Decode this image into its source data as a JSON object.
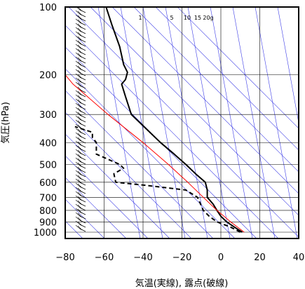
{
  "chart_data": {
    "type": "line",
    "title": "",
    "xlabel": "気温(実線), 露点(破線)",
    "ylabel": "気圧(hPa)",
    "xlim": [
      -80,
      40
    ],
    "ylim": [
      1050,
      100
    ],
    "y_scale": "log",
    "grid": true,
    "x_ticks": [
      -80,
      -60,
      -40,
      -20,
      0,
      20,
      40
    ],
    "x_tick_labels": [
      "−80",
      "−60",
      "−40",
      "−20",
      "0",
      "20",
      "40"
    ],
    "y_ticks": [
      1000,
      900,
      800,
      700,
      600,
      500,
      400,
      300,
      200,
      100
    ],
    "y_tick_labels": [
      "1000",
      "900",
      "800",
      "700",
      "600",
      "500",
      "400",
      "300",
      "200",
      "100"
    ],
    "mixing_ratio_labels": [
      "1",
      "5",
      "10",
      "15",
      "20g"
    ],
    "series": [
      {
        "role": "temperature",
        "style": "solid",
        "color": "#000000",
        "points": [
          {
            "p": 1000,
            "t": 11
          },
          {
            "p": 950,
            "t": 7
          },
          {
            "p": 900,
            "t": 3
          },
          {
            "p": 850,
            "t": 0
          },
          {
            "p": 800,
            "t": -2
          },
          {
            "p": 750,
            "t": -4
          },
          {
            "p": 700,
            "t": -7
          },
          {
            "p": 650,
            "t": -7
          },
          {
            "p": 600,
            "t": -8
          },
          {
            "p": 550,
            "t": -13
          },
          {
            "p": 500,
            "t": -18
          },
          {
            "p": 450,
            "t": -24
          },
          {
            "p": 400,
            "t": -31
          },
          {
            "p": 350,
            "t": -38
          },
          {
            "p": 300,
            "t": -46
          },
          {
            "p": 250,
            "t": -49
          },
          {
            "p": 220,
            "t": -51
          },
          {
            "p": 210,
            "t": -49
          },
          {
            "p": 195,
            "t": -48
          },
          {
            "p": 180,
            "t": -50
          },
          {
            "p": 150,
            "t": -52
          },
          {
            "p": 120,
            "t": -56
          },
          {
            "p": 100,
            "t": -59
          }
        ]
      },
      {
        "role": "dewpoint",
        "style": "dashed",
        "color": "#000000",
        "points": [
          {
            "p": 1000,
            "t": 10
          },
          {
            "p": 950,
            "t": 5
          },
          {
            "p": 900,
            "t": -2
          },
          {
            "p": 850,
            "t": -6
          },
          {
            "p": 800,
            "t": -9
          },
          {
            "p": 700,
            "t": -12
          },
          {
            "p": 650,
            "t": -18
          },
          {
            "p": 620,
            "t": -38
          },
          {
            "p": 600,
            "t": -54
          },
          {
            "p": 550,
            "t": -55
          },
          {
            "p": 520,
            "t": -50
          },
          {
            "p": 500,
            "t": -52
          },
          {
            "p": 450,
            "t": -64
          },
          {
            "p": 400,
            "t": -64
          },
          {
            "p": 380,
            "t": -66
          },
          {
            "p": 360,
            "t": -66
          },
          {
            "p": 340,
            "t": -75
          }
        ]
      },
      {
        "role": "parcel",
        "style": "solid",
        "color": "#ff0000",
        "points": [
          {
            "p": 1000,
            "t": 12
          },
          {
            "p": 900,
            "t": 5
          },
          {
            "p": 800,
            "t": -2
          },
          {
            "p": 700,
            "t": -9
          },
          {
            "p": 600,
            "t": -17
          },
          {
            "p": 500,
            "t": -27
          },
          {
            "p": 400,
            "t": -40
          },
          {
            "p": 300,
            "t": -58
          },
          {
            "p": 220,
            "t": -76
          },
          {
            "p": 200,
            "t": -80
          }
        ]
      }
    ],
    "colors": {
      "guide_lines": "#3a3ae6",
      "grid": "#000000",
      "parcel": "#ff0000"
    }
  }
}
